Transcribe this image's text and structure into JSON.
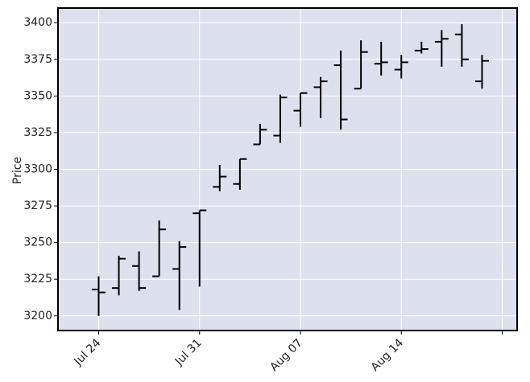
{
  "chart_data": {
    "type": "ohlc",
    "title": "",
    "xlabel": "",
    "ylabel": "Price",
    "ylim": [
      3190,
      3410
    ],
    "yticks": [
      3200,
      3225,
      3250,
      3275,
      3300,
      3325,
      3350,
      3375,
      3400
    ],
    "xticks": [
      {
        "label": "Jul 24",
        "index": 0
      },
      {
        "label": "Jul 31",
        "index": 5
      },
      {
        "label": "Aug 07",
        "index": 10
      },
      {
        "label": "Aug 14",
        "index": 15
      },
      {
        "label": "",
        "index": 20
      }
    ],
    "candles": [
      {
        "open": 3218,
        "high": 3227,
        "low": 3200,
        "close": 3216
      },
      {
        "open": 3219,
        "high": 3241,
        "low": 3214,
        "close": 3239
      },
      {
        "open": 3234,
        "high": 3244,
        "low": 3217,
        "close": 3219
      },
      {
        "open": 3227,
        "high": 3265,
        "low": 3227,
        "close": 3259
      },
      {
        "open": 3232,
        "high": 3251,
        "low": 3204,
        "close": 3247
      },
      {
        "open": 3270,
        "high": 3272,
        "low": 3220,
        "close": 3272
      },
      {
        "open": 3288,
        "high": 3303,
        "low": 3285,
        "close": 3295
      },
      {
        "open": 3290,
        "high": 3307,
        "low": 3286,
        "close": 3307
      },
      {
        "open": 3317,
        "high": 3331,
        "low": 3317,
        "close": 3327
      },
      {
        "open": 3323,
        "high": 3351,
        "low": 3318,
        "close": 3349
      },
      {
        "open": 3340,
        "high": 3352,
        "low": 3329,
        "close": 3352
      },
      {
        "open": 3356,
        "high": 3363,
        "low": 3335,
        "close": 3360
      },
      {
        "open": 3371,
        "high": 3381,
        "low": 3327,
        "close": 3334
      },
      {
        "open": 3355,
        "high": 3388,
        "low": 3355,
        "close": 3380
      },
      {
        "open": 3372,
        "high": 3387,
        "low": 3364,
        "close": 3373
      },
      {
        "open": 3368,
        "high": 3378,
        "low": 3362,
        "close": 3373
      },
      {
        "open": 3381,
        "high": 3387,
        "low": 3379,
        "close": 3382
      },
      {
        "open": 3387,
        "high": 3395,
        "low": 3370,
        "close": 3389
      },
      {
        "open": 3392,
        "high": 3399,
        "low": 3370,
        "close": 3375
      },
      {
        "open": 3360,
        "high": 3378,
        "low": 3355,
        "close": 3374
      }
    ],
    "colors": {
      "background": "#dde1ee",
      "grid": "#ffffff",
      "bars": "#000000",
      "frame": "#000000"
    }
  }
}
